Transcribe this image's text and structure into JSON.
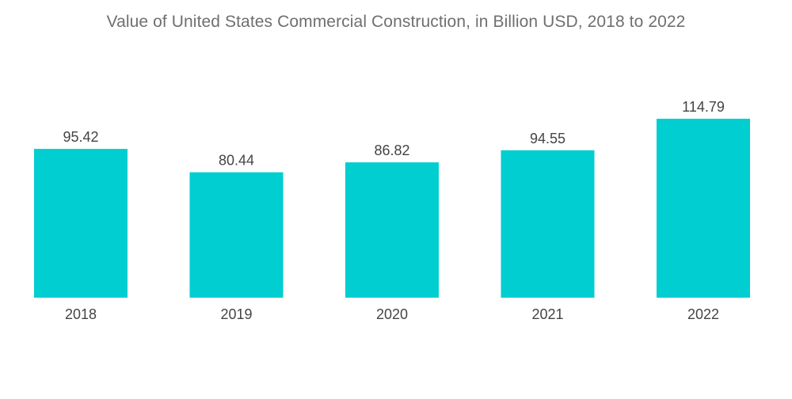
{
  "chart_data": {
    "type": "bar",
    "title": "Value of United States Commercial Construction, in Billion USD, 2018 to 2022",
    "categories": [
      "2018",
      "2019",
      "2020",
      "2021",
      "2022"
    ],
    "values": [
      95.42,
      80.44,
      86.82,
      94.55,
      114.79
    ],
    "value_labels": [
      "95.42",
      "80.44",
      "86.82",
      "94.55",
      "114.79"
    ],
    "xlabel": "",
    "ylabel": "",
    "ylim": [
      0,
      114.79
    ],
    "grid": false,
    "legend": "none",
    "bar_color": "#00ced1"
  }
}
